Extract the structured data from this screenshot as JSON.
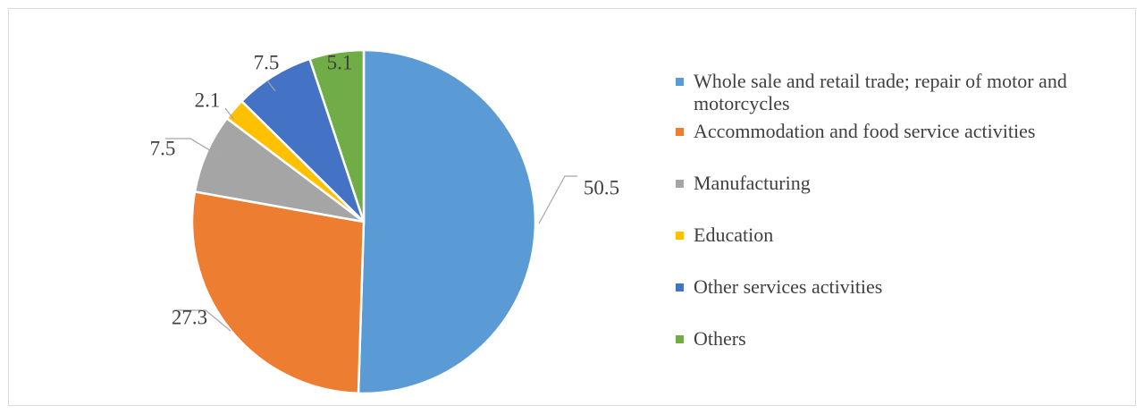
{
  "chart_data": {
    "type": "pie",
    "categories": [
      "Whole sale and retail trade; repair of motor and motorcycles",
      "Accommodation and food service activities",
      "Manufacturing",
      "Education",
      "Other services activities",
      "Others"
    ],
    "values": [
      50.5,
      27.3,
      7.5,
      2.1,
      7.5,
      5.1
    ],
    "value_labels": [
      "50.5",
      "27.3",
      "7.5",
      "2.1",
      "7.5",
      "5.1"
    ],
    "colors": [
      "#5b9bd5",
      "#ed7d31",
      "#a5a5a5",
      "#ffc000",
      "#4472c4",
      "#70ad47"
    ],
    "legend": "right"
  }
}
